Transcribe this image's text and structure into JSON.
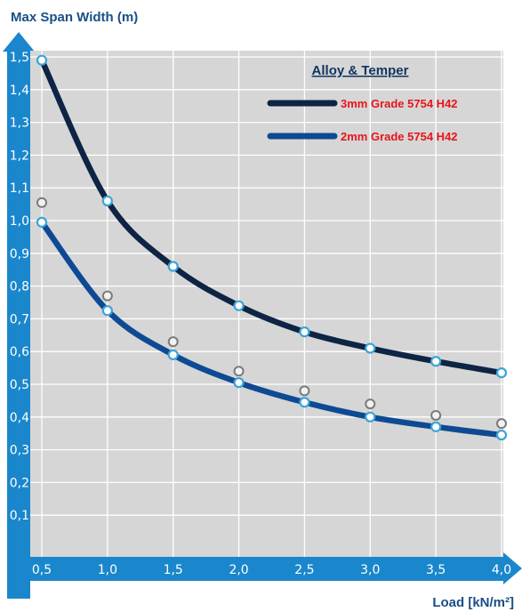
{
  "chart_data": {
    "type": "line",
    "ylabel": "Max Span Width (m)",
    "xlabel": "Load [kN/m²]",
    "xlim": [
      0.5,
      4.0
    ],
    "ylim": [
      0,
      1.5
    ],
    "x_ticks": [
      "0,5",
      "1,0",
      "1,5",
      "2,0",
      "2,5",
      "3,0",
      "3,5",
      "4,0"
    ],
    "y_ticks": [
      "0,1",
      "0,2",
      "0,3",
      "0,4",
      "0,5",
      "0,6",
      "0,7",
      "0,8",
      "0,9",
      "1,0",
      "1,1",
      "1,2",
      "1,3",
      "1,4",
      "1,5"
    ],
    "grid": true,
    "legend": {
      "title": "Alloy & Temper",
      "position": "top-right"
    },
    "series": [
      {
        "name": "3mm Grade 5754 H42",
        "color": "#0d2444",
        "x": [
          0.5,
          1.0,
          1.5,
          2.0,
          2.5,
          3.0,
          3.5,
          4.0
        ],
        "y": [
          1.49,
          1.06,
          0.86,
          0.74,
          0.66,
          0.61,
          0.57,
          0.535
        ]
      },
      {
        "name": "2mm Grade 5754 H42",
        "color": "#0e4a94",
        "x": [
          0.5,
          1.0,
          1.5,
          2.0,
          2.5,
          3.0,
          3.5,
          4.0
        ],
        "y": [
          0.995,
          0.725,
          0.59,
          0.505,
          0.445,
          0.4,
          0.37,
          0.345
        ]
      },
      {
        "color": "#8a8a8a",
        "markers_only": true,
        "x": [
          0.5,
          1.0,
          1.5,
          2.0,
          2.5,
          3.0,
          3.5,
          4.0
        ],
        "y": [
          1.055,
          0.77,
          0.63,
          0.54,
          0.48,
          0.44,
          0.405,
          0.38
        ]
      }
    ]
  }
}
